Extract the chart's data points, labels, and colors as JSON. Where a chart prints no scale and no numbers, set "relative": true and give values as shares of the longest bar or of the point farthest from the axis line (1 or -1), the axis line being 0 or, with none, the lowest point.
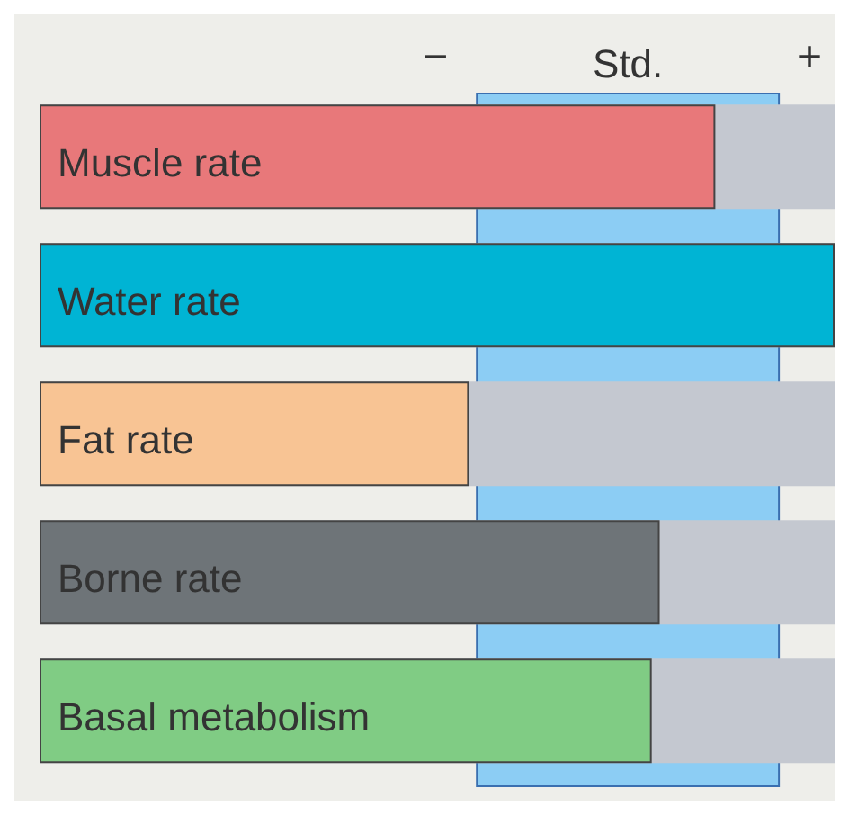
{
  "chart_data": {
    "type": "bar",
    "orientation": "horizontal",
    "relative": true,
    "categories": [
      "Muscle rate",
      "Water rate",
      "Fat rate",
      "Borne rate",
      "Basal metabolism"
    ],
    "values": [
      0.85,
      1,
      0.54,
      0.78,
      0.77
    ],
    "colors": [
      "#e8787a",
      "#00b4d4",
      "#f8c494",
      "#6e7478",
      "#80cc84"
    ],
    "bands": [
      {
        "axis": "x",
        "from": 0.55,
        "to": 0.93,
        "label": "Std.",
        "color": "#8ccdf4"
      }
    ],
    "annotations": [
      "−",
      "+"
    ]
  }
}
